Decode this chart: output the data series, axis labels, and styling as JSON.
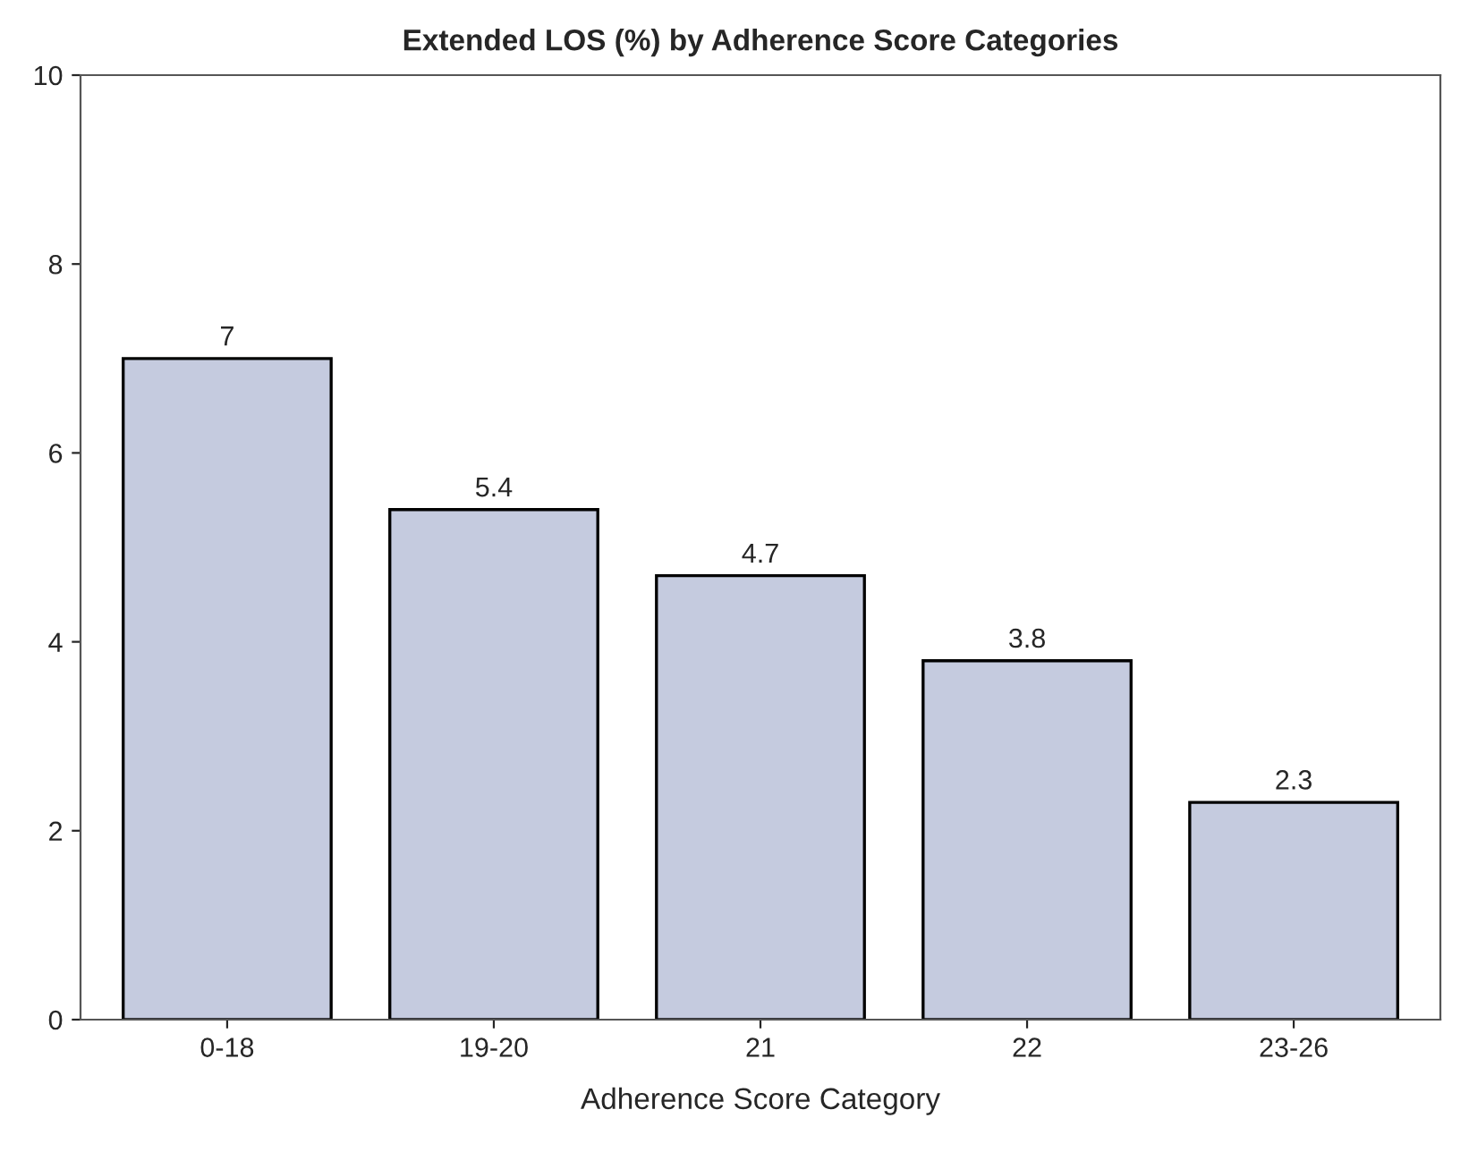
{
  "chart_data": {
    "type": "bar",
    "title": "Extended LOS (%) by Adherence Score Categories",
    "xlabel": "Adherence Score Category",
    "categories": [
      "0-18",
      "19-20",
      "21",
      "22",
      "23-26"
    ],
    "values": [
      7,
      5.4,
      4.7,
      3.8,
      2.3
    ],
    "color": "#c5cbdf",
    "ylim": [
      0,
      10
    ],
    "yticks": [
      0,
      2,
      4,
      6,
      8,
      10
    ],
    "grid": false,
    "data_labels": true
  }
}
